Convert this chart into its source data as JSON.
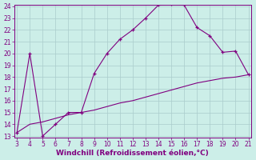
{
  "xlabel": "Windchill (Refroidissement éolien,°C)",
  "xlim": [
    3,
    21
  ],
  "ylim": [
    13,
    24
  ],
  "xticks": [
    3,
    4,
    5,
    6,
    7,
    8,
    9,
    10,
    11,
    12,
    13,
    14,
    15,
    16,
    17,
    18,
    19,
    20,
    21
  ],
  "yticks": [
    13,
    14,
    15,
    16,
    17,
    18,
    19,
    20,
    21,
    22,
    23,
    24
  ],
  "line1_x": [
    3,
    4,
    5,
    6,
    7,
    8,
    9,
    10,
    11,
    12,
    13,
    14,
    15,
    16,
    17,
    18,
    19,
    20,
    21
  ],
  "line1_y": [
    13.3,
    20.0,
    13.0,
    14.0,
    15.0,
    15.0,
    18.3,
    20.0,
    21.2,
    22.0,
    23.0,
    24.1,
    24.2,
    24.1,
    22.2,
    21.5,
    20.1,
    20.2,
    18.2
  ],
  "line2_x": [
    3,
    4,
    5,
    6,
    7,
    8,
    9,
    10,
    11,
    12,
    13,
    14,
    15,
    16,
    17,
    18,
    19,
    20,
    21
  ],
  "line2_y": [
    13.3,
    14.0,
    14.2,
    14.5,
    14.8,
    15.0,
    15.2,
    15.5,
    15.8,
    16.0,
    16.3,
    16.6,
    16.9,
    17.2,
    17.5,
    17.7,
    17.9,
    18.0,
    18.2
  ],
  "line_color": "#800080",
  "bg_color": "#cceee8",
  "grid_color": "#aacccc",
  "tick_fontsize": 5.5,
  "xlabel_fontsize": 6.5
}
